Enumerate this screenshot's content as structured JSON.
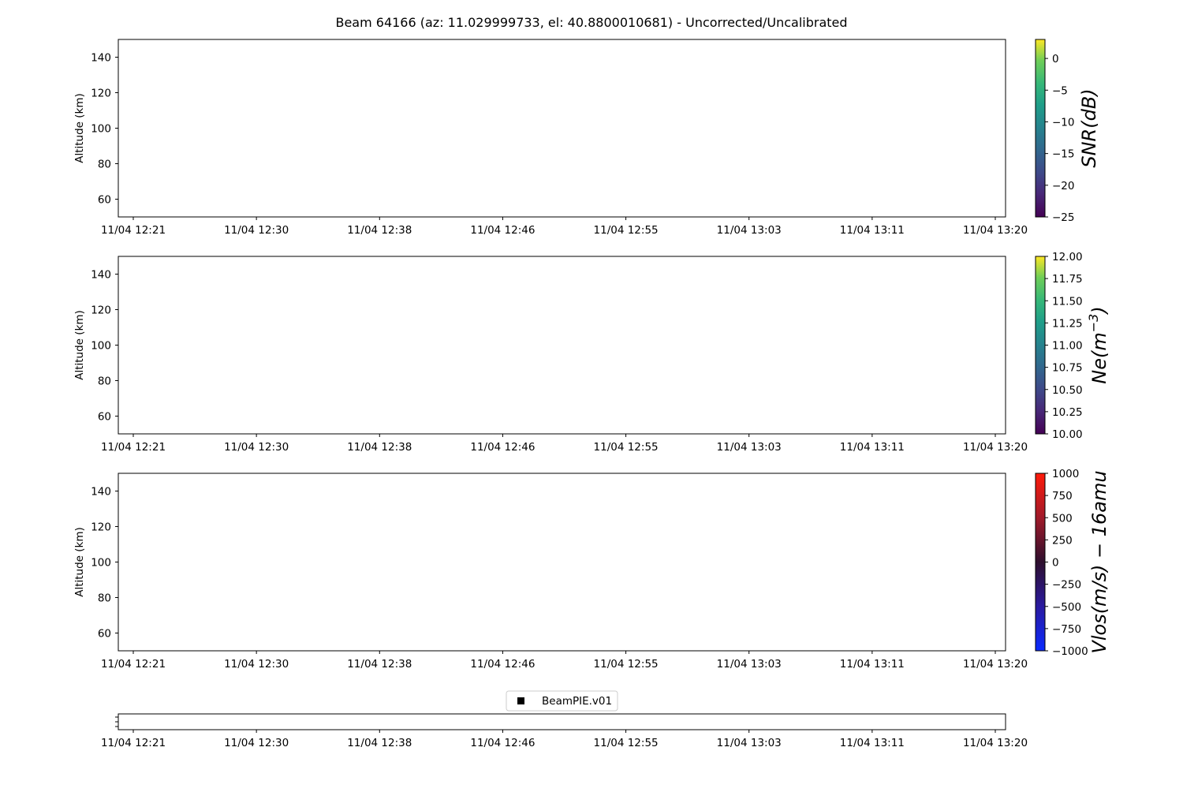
{
  "chart_data": {
    "title": "Beam 64166 (az: 11.029999733, el: 40.8800010681) - Uncorrected/Uncalibrated",
    "x_tick_labels": [
      "11/04 12:21",
      "11/04 12:30",
      "11/04 12:38",
      "11/04 12:46",
      "11/04 12:55",
      "11/04 13:03",
      "11/04 13:11",
      "11/04 13:20"
    ],
    "panels": [
      {
        "type": "heatmap",
        "ylabel": "Altitude (km)",
        "ylim": [
          50,
          150
        ],
        "yticks": [
          60,
          80,
          100,
          120,
          140
        ],
        "values": [],
        "colorbar": {
          "label": "SNR(dB)",
          "label_sup": "",
          "cmap": "viridis",
          "range": [
            -25,
            3
          ],
          "ticks": [
            -25,
            -20,
            -15,
            -10,
            -5,
            0
          ]
        }
      },
      {
        "type": "heatmap",
        "ylabel": "Altitude (km)",
        "ylim": [
          50,
          150
        ],
        "yticks": [
          60,
          80,
          100,
          120,
          140
        ],
        "values": [],
        "colorbar": {
          "label": "Ne(m",
          "label_sup": "−3",
          "label_tail": ")",
          "cmap": "viridis",
          "range": [
            10,
            12
          ],
          "ticks": [
            "10.00",
            "10.25",
            "10.50",
            "10.75",
            "11.00",
            "11.25",
            "11.50",
            "11.75",
            "12.00"
          ]
        }
      },
      {
        "type": "heatmap",
        "ylabel": "Altitude (km)",
        "ylim": [
          50,
          150
        ],
        "yticks": [
          60,
          80,
          100,
          120,
          140
        ],
        "values": [],
        "colorbar": {
          "label": "Vlos(m/s) − 16amu",
          "label_sup": "",
          "cmap": "blue-black-red",
          "range": [
            -1000,
            1000
          ],
          "ticks": [
            -1000,
            -750,
            -500,
            -250,
            0,
            250,
            500,
            750,
            1000
          ]
        }
      }
    ],
    "legend": {
      "entries": [
        "BeamPIE.v01"
      ],
      "placement": "top-center"
    },
    "grid": false
  }
}
